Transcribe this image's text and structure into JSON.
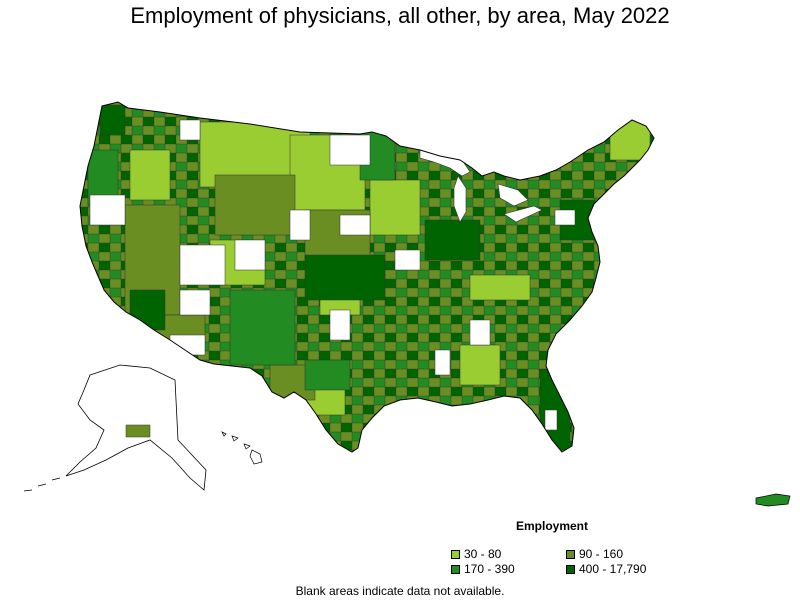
{
  "title": "Employment of physicians, all other, by area, May 2022",
  "legend": {
    "title": "Employment",
    "items": [
      {
        "label": "30 - 80",
        "color": "#9ACD32"
      },
      {
        "label": "90 - 160",
        "color": "#6B8E23"
      },
      {
        "label": "170 - 390",
        "color": "#228B22"
      },
      {
        "label": "400 - 17,790",
        "color": "#006400"
      }
    ]
  },
  "footnote": "Blank areas indicate data not available.",
  "colors": {
    "border": "#333333",
    "blank": "#ffffff"
  }
}
